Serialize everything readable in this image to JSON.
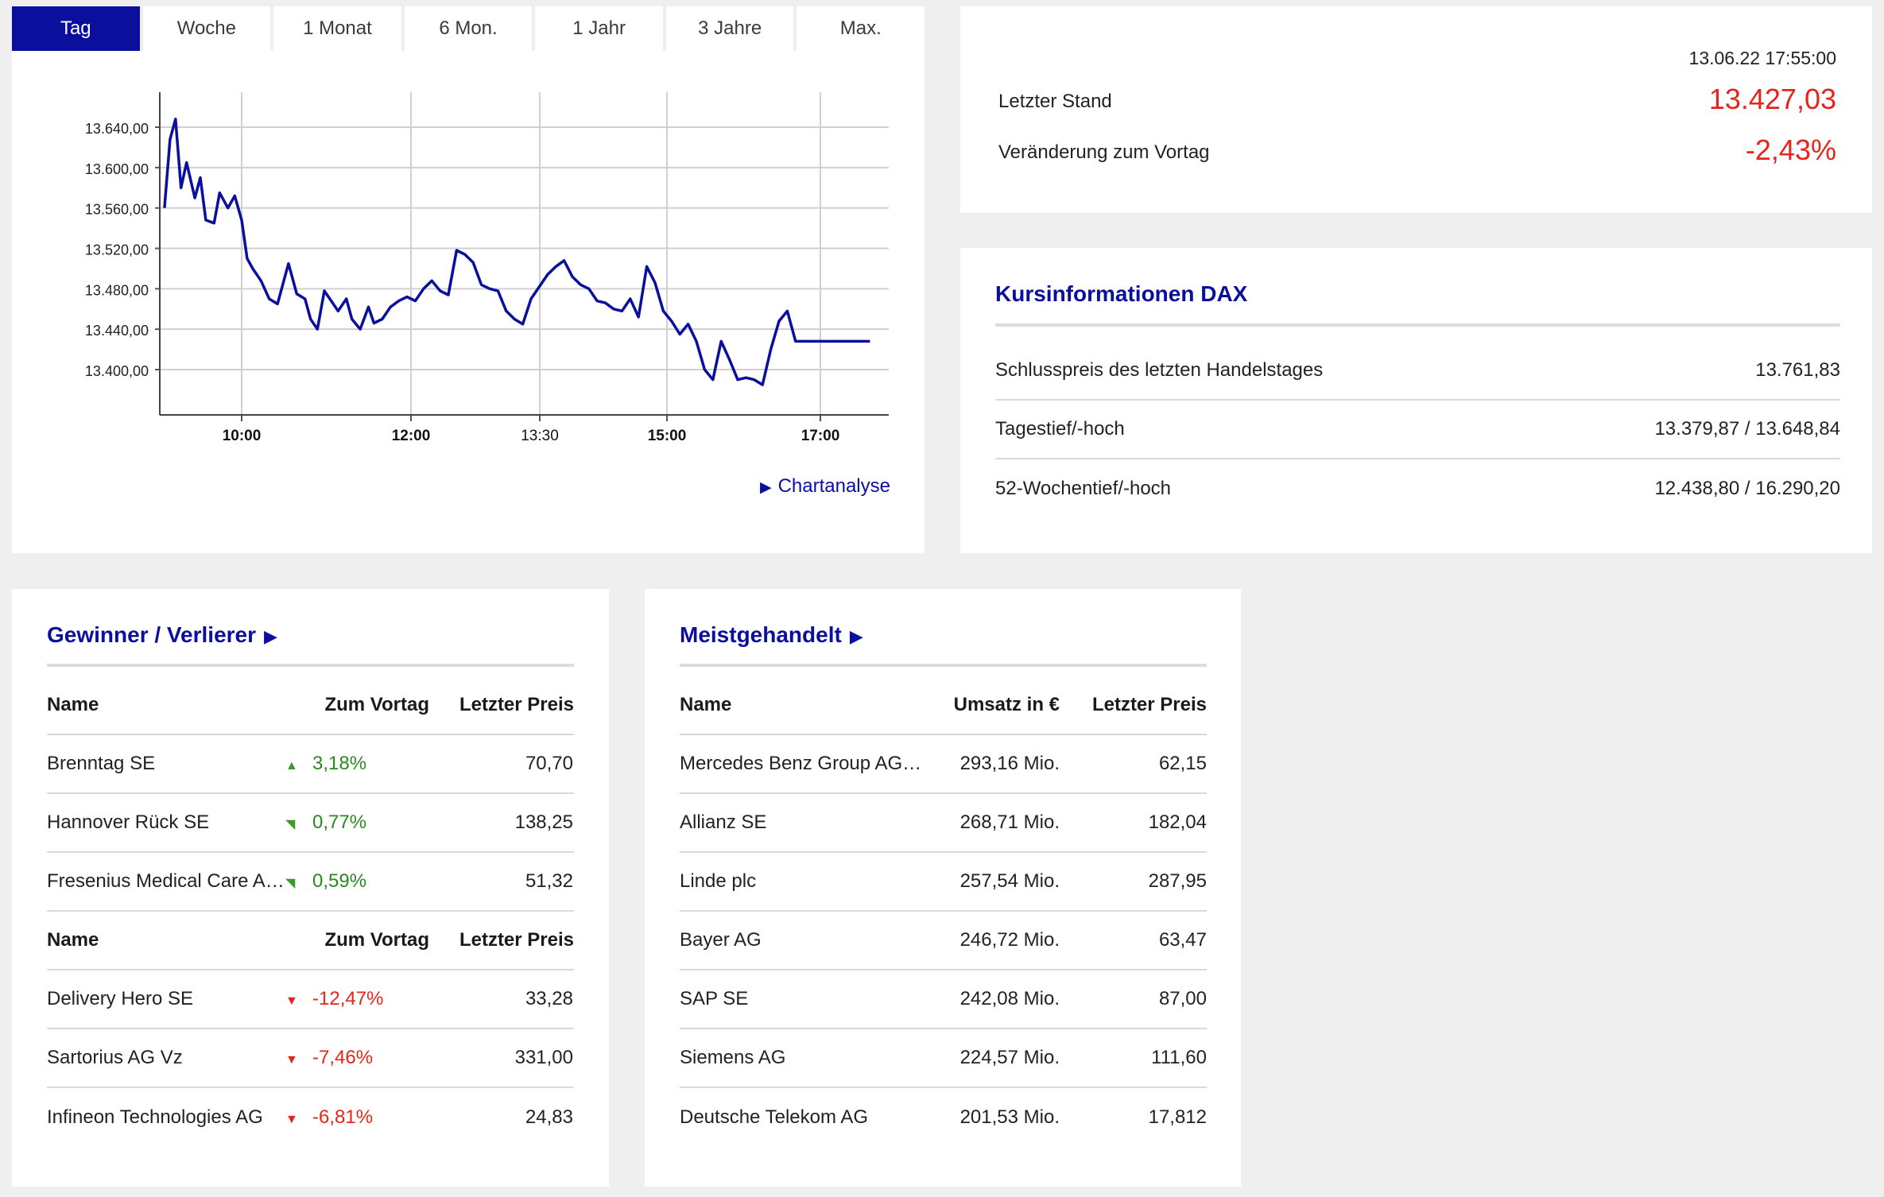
{
  "tabs": [
    {
      "label": "Tag",
      "active": true
    },
    {
      "label": "Woche",
      "active": false
    },
    {
      "label": "1 Monat",
      "active": false
    },
    {
      "label": "6 Mon.",
      "active": false
    },
    {
      "label": "1 Jahr",
      "active": false
    },
    {
      "label": "3 Jahre",
      "active": false
    },
    {
      "label": "Max.",
      "active": false
    }
  ],
  "chart_link": "Chartanalyse",
  "chart_data": {
    "type": "line",
    "y_ticks": [
      "13.640,00",
      "13.600,00",
      "13.560,00",
      "13.520,00",
      "13.480,00",
      "13.440,00",
      "13.400,00"
    ],
    "x_ticks": [
      "10:00",
      "12:00",
      "13:30",
      "15:00",
      "17:00"
    ],
    "x_ticks_bold": [
      true,
      true,
      false,
      true,
      true
    ],
    "line_color": "#0a0f9e",
    "x": [
      "09:04",
      "09:08",
      "09:12",
      "09:16",
      "09:20",
      "09:26",
      "09:30",
      "09:34",
      "09:40",
      "09:44",
      "09:50",
      "09:55",
      "10:00",
      "10:04",
      "10:08",
      "10:14",
      "10:20",
      "10:26",
      "10:30",
      "10:34",
      "10:40",
      "10:46",
      "10:50",
      "10:55",
      "11:00",
      "11:05",
      "11:10",
      "11:16",
      "11:20",
      "11:26",
      "11:32",
      "11:36",
      "11:42",
      "11:48",
      "11:54",
      "12:00",
      "12:06",
      "12:12",
      "12:18",
      "12:24",
      "12:30",
      "12:36",
      "12:42",
      "12:48",
      "12:54",
      "13:00",
      "13:06",
      "13:12",
      "13:18",
      "13:24",
      "13:30",
      "13:36",
      "13:42",
      "13:48",
      "13:54",
      "14:00",
      "14:06",
      "14:12",
      "14:18",
      "14:24",
      "14:30",
      "14:36",
      "14:42",
      "14:48",
      "14:54",
      "15:00",
      "15:06",
      "15:12",
      "15:18",
      "15:24",
      "15:30",
      "15:36",
      "15:42",
      "15:48",
      "15:54",
      "16:00",
      "16:06",
      "16:12",
      "16:18",
      "16:24",
      "16:30",
      "16:36",
      "16:42",
      "16:48",
      "16:54",
      "17:00",
      "17:06",
      "17:12",
      "17:18",
      "17:24",
      "17:30",
      "17:36"
    ],
    "y": [
      13560,
      13628,
      13648,
      13580,
      13605,
      13570,
      13590,
      13548,
      13545,
      13575,
      13560,
      13572,
      13548,
      13510,
      13500,
      13488,
      13470,
      13465,
      13485,
      13505,
      13475,
      13470,
      13450,
      13440,
      13478,
      13468,
      13458,
      13470,
      13450,
      13440,
      13462,
      13446,
      13450,
      13462,
      13468,
      13472,
      13468,
      13480,
      13488,
      13478,
      13474,
      13518,
      13514,
      13506,
      13484,
      13480,
      13478,
      13458,
      13450,
      13445,
      13470,
      13482,
      13494,
      13502,
      13508,
      13492,
      13484,
      13480,
      13468,
      13466,
      13460,
      13458,
      13470,
      13452,
      13502,
      13486,
      13458,
      13448,
      13435,
      13445,
      13428,
      13400,
      13390,
      13428,
      13410,
      13390,
      13392,
      13390,
      13385,
      13420,
      13448,
      13458,
      13428,
      13428,
      13428,
      13428,
      13428,
      13428,
      13428,
      13428,
      13428,
      13428
    ]
  },
  "quote": {
    "timestamp": "13.06.22 17:55:00",
    "last_label": "Letzter Stand",
    "last_value": "13.427,03",
    "change_label": "Veränderung zum Vortag",
    "change_value": "-2,43%"
  },
  "info": {
    "title": "Kursinformationen DAX",
    "rows": [
      {
        "label": "Schlusspreis des letzten Handelstages",
        "value": "13.761,83"
      },
      {
        "label": "Tagestief/-hoch",
        "value": "13.379,87 / 13.648,84"
      },
      {
        "label": "52-Wochentief/-hoch",
        "value": "12.438,80 / 16.290,20"
      }
    ]
  },
  "gainers": {
    "title": "Gewinner / Verlierer",
    "headers": {
      "name": "Name",
      "change": "Zum Vortag",
      "price": "Letzter Preis"
    },
    "winners": [
      {
        "name": "Brenntag SE",
        "change": "3,18%",
        "price": "70,70",
        "dir": "up"
      },
      {
        "name": "Hannover Rück SE",
        "change": "0,77%",
        "price": "138,25",
        "dir": "downright"
      },
      {
        "name": "Fresenius Medical Care A…",
        "change": "0,59%",
        "price": "51,32",
        "dir": "downright"
      }
    ],
    "losers": [
      {
        "name": "Delivery Hero SE",
        "change": "-12,47%",
        "price": "33,28",
        "dir": "down"
      },
      {
        "name": "Sartorius AG Vz",
        "change": "-7,46%",
        "price": "331,00",
        "dir": "down"
      },
      {
        "name": "Infineon Technologies AG",
        "change": "-6,81%",
        "price": "24,83",
        "dir": "down"
      }
    ]
  },
  "most_traded": {
    "title": "Meistgehandelt",
    "headers": {
      "name": "Name",
      "volume": "Umsatz in €",
      "price": "Letzter Preis"
    },
    "rows": [
      {
        "name": "Mercedes Benz Group AG…",
        "volume": "293,16 Mio.",
        "price": "62,15"
      },
      {
        "name": "Allianz SE",
        "volume": "268,71 Mio.",
        "price": "182,04"
      },
      {
        "name": "Linde plc",
        "volume": "257,54 Mio.",
        "price": "287,95"
      },
      {
        "name": "Bayer AG",
        "volume": "246,72 Mio.",
        "price": "63,47"
      },
      {
        "name": "SAP SE",
        "volume": "242,08 Mio.",
        "price": "87,00"
      },
      {
        "name": "Siemens AG",
        "volume": "224,57 Mio.",
        "price": "111,60"
      },
      {
        "name": "Deutsche Telekom AG",
        "volume": "201,53 Mio.",
        "price": "17,812"
      }
    ]
  }
}
